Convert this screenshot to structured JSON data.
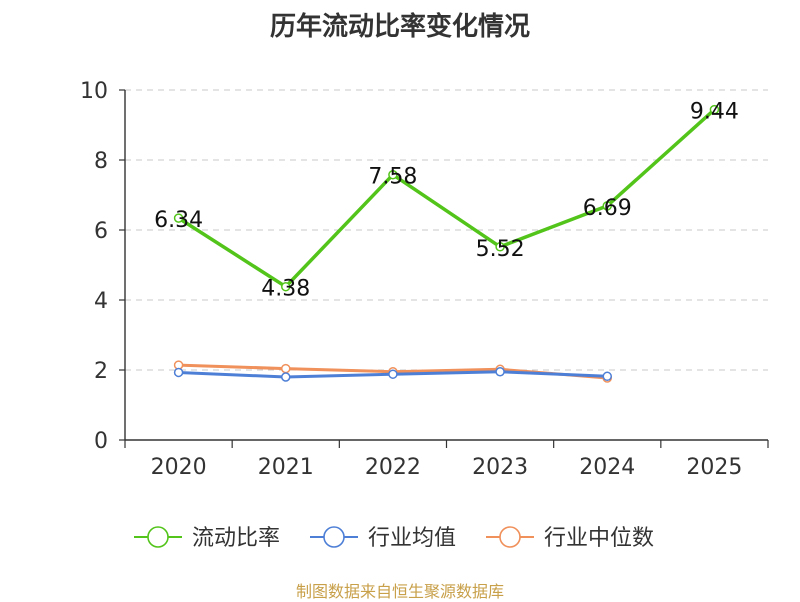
{
  "title": "历年流动比率变化情况",
  "source": "制图数据来自恒生聚源数据库",
  "chart_data": {
    "type": "line",
    "categories": [
      "2020",
      "2021",
      "2022",
      "2023",
      "2024",
      "2025"
    ],
    "ylim": [
      0,
      10
    ],
    "yticks": [
      0,
      2,
      4,
      6,
      8,
      10
    ],
    "grid": true,
    "legend_position": "bottom",
    "series": [
      {
        "name": "流动比率",
        "color": "#52c41a",
        "values": [
          6.34,
          4.38,
          7.58,
          5.52,
          6.69,
          9.44
        ],
        "labels": [
          "6.34",
          "4.38",
          "7.58",
          "5.52",
          "6.69",
          "9.44"
        ]
      },
      {
        "name": "行业均值",
        "color": "#4e7fd6",
        "values": [
          1.93,
          1.8,
          1.88,
          1.95,
          1.82,
          null
        ]
      },
      {
        "name": "行业中位数",
        "color": "#f0905a",
        "values": [
          2.14,
          2.04,
          1.95,
          2.02,
          1.77,
          null
        ]
      }
    ]
  }
}
